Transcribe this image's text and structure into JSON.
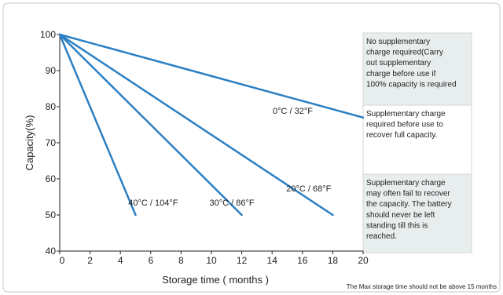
{
  "chart_data": {
    "type": "line",
    "title": "",
    "xlabel": "Storage time ( months )",
    "ylabel": "Capacity(%)",
    "xlim": [
      0,
      20
    ],
    "ylim": [
      40,
      100
    ],
    "x_ticks": [
      "0",
      "2",
      "4",
      "6",
      "8",
      "10",
      "12",
      "14",
      "16",
      "18",
      "20"
    ],
    "y_ticks": [
      "40",
      "50",
      "60",
      "70",
      "80",
      "90",
      "100"
    ],
    "grid": false,
    "line_color": "#2b7fc3",
    "series": [
      {
        "name": "0°C / 32°F",
        "points": [
          [
            0,
            100
          ],
          [
            20,
            77
          ]
        ]
      },
      {
        "name": "20°C / 68°F",
        "points": [
          [
            0,
            100
          ],
          [
            18,
            50
          ]
        ]
      },
      {
        "name": "30°C / 86°F",
        "points": [
          [
            0,
            100
          ],
          [
            12,
            50
          ]
        ]
      },
      {
        "name": "40°C / 104°F",
        "points": [
          [
            0,
            100
          ],
          [
            5,
            50
          ]
        ]
      }
    ],
    "notes": [
      {
        "lines": [
          "No supplementary",
          "charge required(Carry",
          "out supplementary",
          "charge before use if",
          "100% capacity is required"
        ],
        "background": "#e8eeee"
      },
      {
        "lines": [
          "Supplementary charge",
          "required before use to",
          "recover full capacity."
        ],
        "background": "#ffffff"
      },
      {
        "lines": [
          "Supplementary charge",
          "may often fail to recover",
          "the capacity. The battery",
          "should never be left",
          "standing till this is",
          "reached."
        ],
        "background": "#e8eeee"
      }
    ],
    "footnote": "The Max storage time should not be above 15 months"
  }
}
